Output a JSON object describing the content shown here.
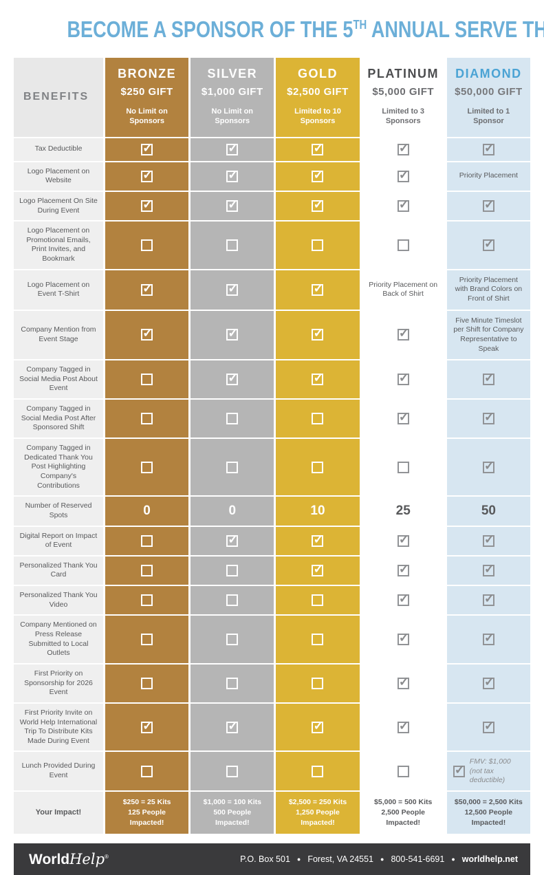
{
  "title": {
    "pre": "BECOME A SPONSOR OF THE 5",
    "sup": "TH",
    "post": " ANNUAL SERVE THE WORLD DAY"
  },
  "colors": {
    "title_blue": "#6cafd8",
    "bronze": "#b2823f",
    "silver": "#b5b5b5",
    "gold": "#dcb435",
    "platinum": "#ffffff",
    "diamond_bg": "#d7e6f1",
    "diamond_blue": "#4ba3d4",
    "benefits_bg": "#efefef",
    "header_gray_text": "#6d6e71",
    "dark_text": "#58595b",
    "footer_bg": "#3a3a3c"
  },
  "benefits_header": "BENEFITS",
  "tiers": [
    {
      "name": "BRONZE",
      "gift": "$250 GIFT",
      "limit": "No Limit on Sponsors",
      "bg": "#b2823f",
      "nameColor": "#ffffff",
      "giftColor": "#ffffff",
      "limitColor": "#ffffff",
      "cellFg": "#ffffff",
      "boxStyle": "light"
    },
    {
      "name": "SILVER",
      "gift": "$1,000 GIFT",
      "limit": "No Limit on Sponsors",
      "bg": "#b5b5b5",
      "nameColor": "#ffffff",
      "giftColor": "#ffffff",
      "limitColor": "#ffffff",
      "cellFg": "#ffffff",
      "boxStyle": "light"
    },
    {
      "name": "GOLD",
      "gift": "$2,500 GIFT",
      "limit": "Limited to 10 Sponsors",
      "bg": "#dcb435",
      "nameColor": "#ffffff",
      "giftColor": "#ffffff",
      "limitColor": "#ffffff",
      "cellFg": "#ffffff",
      "boxStyle": "light"
    },
    {
      "name": "PLATINUM",
      "gift": "$5,000 GIFT",
      "limit": "Limited to 3 Sponsors",
      "bg": "#ffffff",
      "nameColor": "#4d4e50",
      "giftColor": "#6d6e71",
      "limitColor": "#6d6e71",
      "cellFg": "#58595b",
      "boxStyle": "dark"
    },
    {
      "name": "DIAMOND",
      "gift": "$50,000 GIFT",
      "limit": "Limited to 1 Sponsor",
      "bg": "#d7e6f1",
      "nameColor": "#4ba3d4",
      "giftColor": "#77787b",
      "limitColor": "#6d6e71",
      "cellFg": "#58595b",
      "boxStyle": "dark"
    }
  ],
  "rows": [
    {
      "benefit": "Tax Deductible",
      "cells": [
        {
          "t": "check",
          "v": 1
        },
        {
          "t": "check",
          "v": 1
        },
        {
          "t": "check",
          "v": 1
        },
        {
          "t": "check",
          "v": 1
        },
        {
          "t": "check",
          "v": 1
        }
      ]
    },
    {
      "benefit": "Logo Placement on Website",
      "cells": [
        {
          "t": "check",
          "v": 1
        },
        {
          "t": "check",
          "v": 1
        },
        {
          "t": "check",
          "v": 1
        },
        {
          "t": "check",
          "v": 1
        },
        {
          "t": "text",
          "v": "Priority Placement"
        }
      ]
    },
    {
      "benefit": "Logo Placement On Site During Event",
      "cells": [
        {
          "t": "check",
          "v": 1
        },
        {
          "t": "check",
          "v": 1
        },
        {
          "t": "check",
          "v": 1
        },
        {
          "t": "check",
          "v": 1
        },
        {
          "t": "check",
          "v": 1
        }
      ]
    },
    {
      "benefit": "Logo Placement on Promotional Emails, Print Invites, and Bookmark",
      "cells": [
        {
          "t": "check",
          "v": 0
        },
        {
          "t": "check",
          "v": 0
        },
        {
          "t": "check",
          "v": 0
        },
        {
          "t": "check",
          "v": 0
        },
        {
          "t": "check",
          "v": 1
        }
      ]
    },
    {
      "benefit": "Logo Placement on Event T-Shirt",
      "cells": [
        {
          "t": "check",
          "v": 1
        },
        {
          "t": "check",
          "v": 1
        },
        {
          "t": "check",
          "v": 1
        },
        {
          "t": "text",
          "v": "Priority Placement on Back of Shirt"
        },
        {
          "t": "text",
          "v": "Priority Placement with Brand Colors on Front of Shirt"
        }
      ]
    },
    {
      "benefit": "Company Mention from Event Stage",
      "cells": [
        {
          "t": "check",
          "v": 1
        },
        {
          "t": "check",
          "v": 1
        },
        {
          "t": "check",
          "v": 1
        },
        {
          "t": "check",
          "v": 1
        },
        {
          "t": "text",
          "v": "Five Minute Timeslot per Shift for Company Representative to Speak"
        }
      ]
    },
    {
      "benefit": "Company Tagged in Social Media Post About Event",
      "cells": [
        {
          "t": "check",
          "v": 0
        },
        {
          "t": "check",
          "v": 1
        },
        {
          "t": "check",
          "v": 1
        },
        {
          "t": "check",
          "v": 1
        },
        {
          "t": "check",
          "v": 1
        }
      ]
    },
    {
      "benefit": "Company Tagged in Social Media Post After Sponsored Shift",
      "cells": [
        {
          "t": "check",
          "v": 0
        },
        {
          "t": "check",
          "v": 0
        },
        {
          "t": "check",
          "v": 0
        },
        {
          "t": "check",
          "v": 1
        },
        {
          "t": "check",
          "v": 1
        }
      ]
    },
    {
      "benefit": "Company Tagged in Dedicated Thank You Post Highlighting Company's Contributions",
      "cells": [
        {
          "t": "check",
          "v": 0
        },
        {
          "t": "check",
          "v": 0
        },
        {
          "t": "check",
          "v": 0
        },
        {
          "t": "check",
          "v": 0
        },
        {
          "t": "check",
          "v": 1
        }
      ]
    },
    {
      "benefit": "Number of Reserved Spots",
      "cells": [
        {
          "t": "num",
          "v": "0"
        },
        {
          "t": "num",
          "v": "0"
        },
        {
          "t": "num",
          "v": "10"
        },
        {
          "t": "num",
          "v": "25"
        },
        {
          "t": "num",
          "v": "50"
        }
      ]
    },
    {
      "benefit": "Digital Report on Impact of Event",
      "cells": [
        {
          "t": "check",
          "v": 0
        },
        {
          "t": "check",
          "v": 1
        },
        {
          "t": "check",
          "v": 1
        },
        {
          "t": "check",
          "v": 1
        },
        {
          "t": "check",
          "v": 1
        }
      ]
    },
    {
      "benefit": "Personalized Thank You Card",
      "cells": [
        {
          "t": "check",
          "v": 0
        },
        {
          "t": "check",
          "v": 0
        },
        {
          "t": "check",
          "v": 1
        },
        {
          "t": "check",
          "v": 1
        },
        {
          "t": "check",
          "v": 1
        }
      ]
    },
    {
      "benefit": "Personalized Thank You Video",
      "cells": [
        {
          "t": "check",
          "v": 0
        },
        {
          "t": "check",
          "v": 0
        },
        {
          "t": "check",
          "v": 0
        },
        {
          "t": "check",
          "v": 1
        },
        {
          "t": "check",
          "v": 1
        }
      ]
    },
    {
      "benefit": "Company Mentioned on Press Release Submitted to Local Outlets",
      "cells": [
        {
          "t": "check",
          "v": 0
        },
        {
          "t": "check",
          "v": 0
        },
        {
          "t": "check",
          "v": 0
        },
        {
          "t": "check",
          "v": 1
        },
        {
          "t": "check",
          "v": 1
        }
      ]
    },
    {
      "benefit": "First Priority on Sponsorship for 2026 Event",
      "cells": [
        {
          "t": "check",
          "v": 0
        },
        {
          "t": "check",
          "v": 0
        },
        {
          "t": "check",
          "v": 0
        },
        {
          "t": "check",
          "v": 1
        },
        {
          "t": "check",
          "v": 1
        }
      ]
    },
    {
      "benefit": "First Priority Invite on World Help International Trip To Distribute Kits Made During Event",
      "cells": [
        {
          "t": "check",
          "v": 1
        },
        {
          "t": "check",
          "v": 1
        },
        {
          "t": "check",
          "v": 1
        },
        {
          "t": "check",
          "v": 1
        },
        {
          "t": "check",
          "v": 1
        }
      ]
    },
    {
      "benefit": "Lunch Provided During Event",
      "cells": [
        {
          "t": "check",
          "v": 0
        },
        {
          "t": "check",
          "v": 0
        },
        {
          "t": "check",
          "v": 0
        },
        {
          "t": "check",
          "v": 0
        },
        {
          "t": "checktext",
          "v": [
            "FMV: $1,000",
            "(not tax deductible)"
          ]
        }
      ]
    },
    {
      "benefit": "Your Impact!",
      "bold": true,
      "cells": [
        {
          "t": "impact",
          "v": [
            "$250 = 25 Kits",
            "125 People Impacted!"
          ]
        },
        {
          "t": "impact",
          "v": [
            "$1,000 = 100 Kits",
            "500 People Impacted!"
          ]
        },
        {
          "t": "impact",
          "v": [
            "$2,500 = 250 Kits",
            "1,250 People Impacted!"
          ]
        },
        {
          "t": "impact",
          "v": [
            "$5,000 = 500 Kits",
            "2,500 People Impacted!"
          ]
        },
        {
          "t": "impact",
          "v": [
            "$50,000 = 2,500 Kits",
            "12,500 People Impacted!"
          ]
        }
      ]
    }
  ],
  "footer": {
    "logo_world": "World",
    "logo_help": "Help",
    "logo_reg": "®",
    "items": [
      "P.O. Box 501",
      "Forest, VA 24551",
      "800-541-6691",
      "worldhelp.net"
    ]
  }
}
